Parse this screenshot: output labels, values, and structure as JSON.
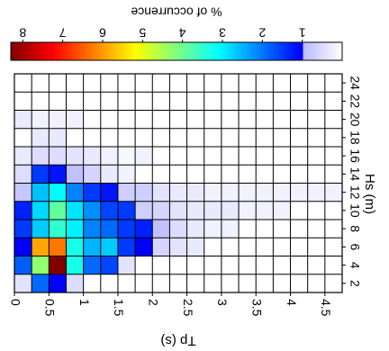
{
  "chart_data": {
    "type": "heatmap",
    "orientation": "rotated 90 degrees clockwise",
    "x_axis": {
      "label": "Hs (m)",
      "ticks": [
        "0",
        "0.5",
        "1",
        "1.5",
        "2",
        "2.5",
        "3",
        "3.5",
        "4",
        "4.5"
      ],
      "range": [
        0,
        4.75
      ],
      "bin_size": 0.25
    },
    "y_axis": {
      "label": "Tp (s)",
      "ticks": [
        "2",
        "4",
        "6",
        "8",
        "10",
        "12",
        "14",
        "16",
        "18",
        "20",
        "22",
        "24"
      ],
      "range": [
        1,
        25
      ],
      "bin_size": 2
    },
    "colorbar": {
      "label": "% of occurrence",
      "ticks": [
        "1",
        "2",
        "3",
        "4",
        "5",
        "6",
        "7",
        "8"
      ],
      "range": [
        0,
        8.3
      ],
      "colormap": "jet"
    },
    "tp_bins": [
      2,
      4,
      6,
      8,
      10,
      12,
      14,
      16,
      18,
      20,
      22,
      24
    ],
    "hs_bins": [
      0.125,
      0.375,
      0.625,
      0.875,
      1.125,
      1.375,
      1.625,
      1.875,
      2.125,
      2.375,
      2.625,
      2.875,
      3.125,
      3.375,
      3.625,
      3.875,
      4.125,
      4.375,
      4.625
    ],
    "values": [
      [
        0.4,
        1.9,
        1.0,
        0.5,
        0,
        0,
        0,
        0,
        0,
        0,
        0,
        0,
        0,
        0,
        0,
        0,
        0,
        0,
        0
      ],
      [
        1.8,
        4.3,
        8.3,
        3.3,
        1.9,
        1.6,
        0.4,
        0,
        0,
        0,
        0,
        0,
        0,
        0,
        0,
        0,
        0,
        0,
        0
      ],
      [
        1.0,
        5.9,
        6.3,
        3.3,
        2.5,
        2.7,
        1.5,
        1.0,
        0.6,
        0.4,
        0.3,
        0,
        0,
        0,
        0,
        0,
        0,
        0,
        0
      ],
      [
        1.5,
        2.7,
        3.5,
        3.0,
        2.1,
        1.9,
        1.5,
        1.3,
        0.9,
        0.5,
        0.3,
        0.2,
        0.2,
        0,
        0,
        0,
        0,
        0,
        0
      ],
      [
        1.3,
        2.8,
        3.9,
        2.9,
        2.2,
        1.6,
        1.5,
        0.7,
        0.6,
        0.4,
        0.3,
        0.3,
        0.3,
        0.2,
        0.2,
        0.2,
        0,
        0,
        0
      ],
      [
        0.8,
        2.6,
        3.1,
        2.1,
        1.5,
        1.2,
        0.7,
        0.7,
        0.4,
        0.3,
        0.3,
        0.2,
        0.2,
        0.2,
        0.2,
        0.2,
        0.2,
        0.2,
        0.2
      ],
      [
        0.5,
        1.5,
        1.2,
        0.9,
        0.6,
        0.3,
        0.2,
        0,
        0,
        0,
        0,
        0,
        0,
        0,
        0,
        0,
        0,
        0,
        0
      ],
      [
        0.3,
        0.5,
        0.5,
        0.4,
        0.3,
        0.2,
        0.1,
        0.2,
        0,
        0,
        0,
        0,
        0,
        0,
        0,
        0,
        0,
        0,
        0
      ],
      [
        0,
        0.3,
        0.3,
        0,
        0,
        0,
        0,
        0,
        0,
        0,
        0,
        0,
        0,
        0,
        0,
        0,
        0,
        0,
        0
      ],
      [
        0.3,
        0.2,
        0.2,
        0.2,
        0,
        0,
        0,
        0,
        0,
        0,
        0,
        0,
        0,
        0,
        0,
        0,
        0,
        0,
        0
      ],
      [
        0,
        0,
        0,
        0,
        0,
        0,
        0,
        0,
        0,
        0,
        0,
        0,
        0,
        0,
        0,
        0,
        0,
        0,
        0
      ],
      [
        0,
        0,
        0,
        0,
        0,
        0,
        0,
        0,
        0,
        0,
        0,
        0,
        0,
        0,
        0,
        0,
        0,
        0,
        0
      ]
    ]
  }
}
